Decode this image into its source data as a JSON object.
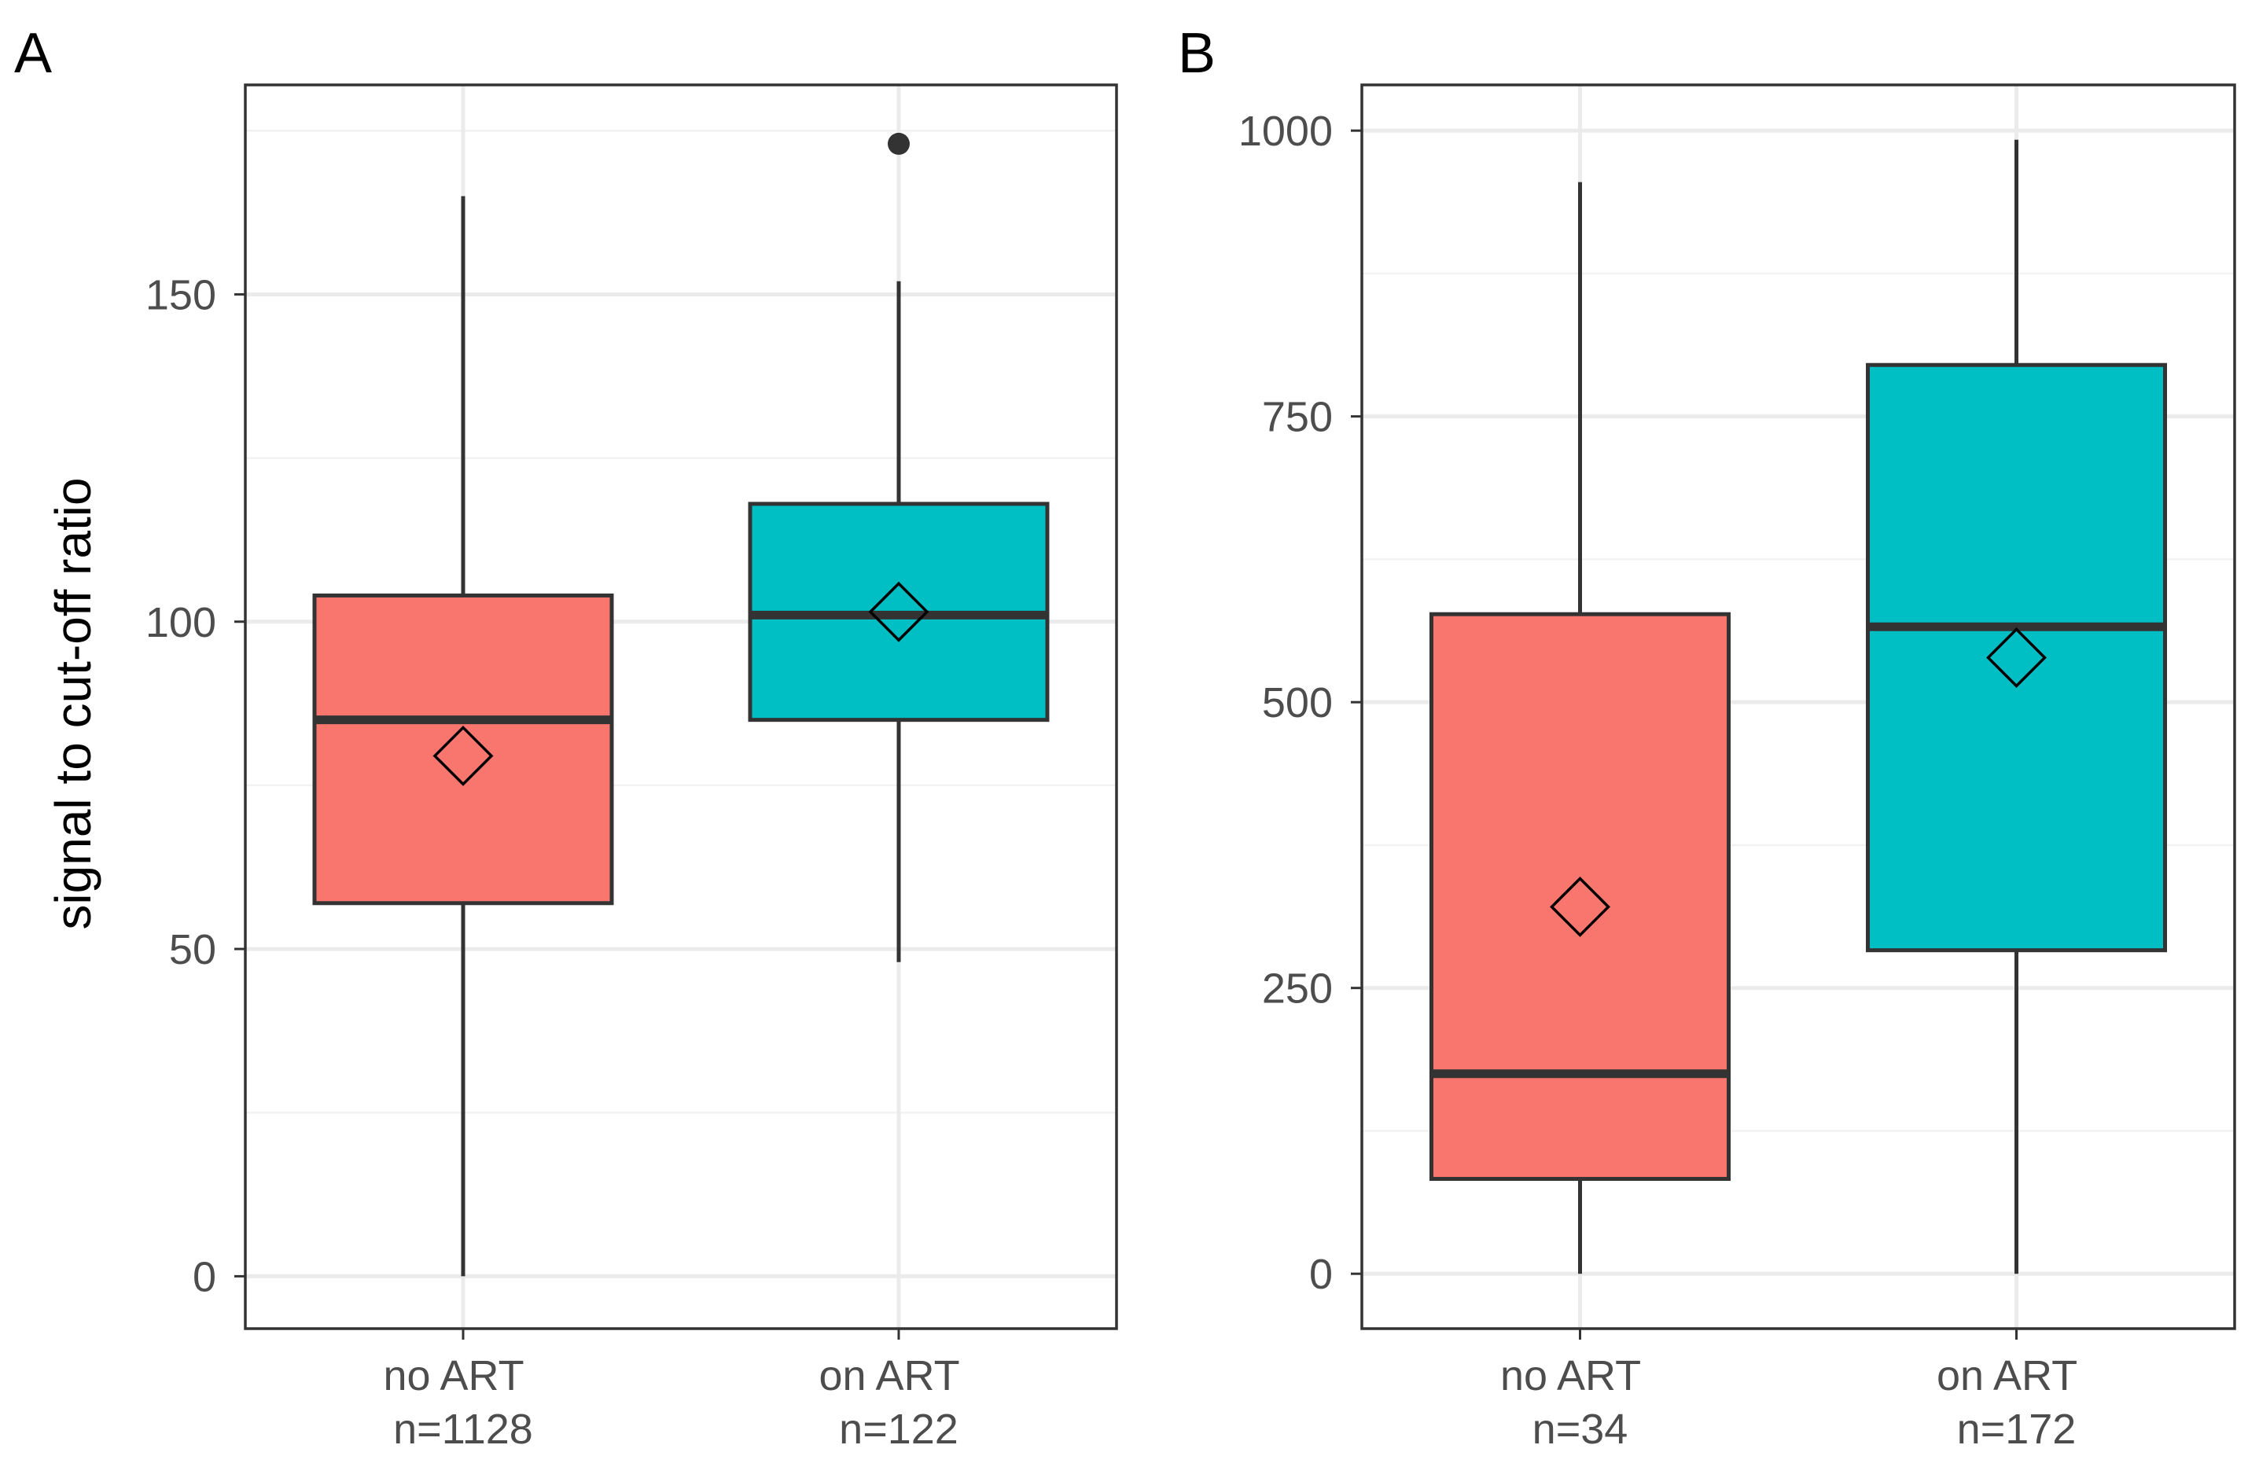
{
  "figure": {
    "ylabel": "signal to cut-off ratio"
  },
  "chart_data": [
    {
      "type": "box",
      "panel_label": "A",
      "ylabel": "signal to cut-off ratio",
      "ylim": [
        -8,
        182
      ],
      "y_ticks": [
        0,
        50,
        100,
        150
      ],
      "y_minor": [
        25,
        75,
        125,
        175
      ],
      "grid": true,
      "categories": [
        {
          "label": "no ART",
          "n_label": "n=1128",
          "color": "#F8766D",
          "whisker_low": 0,
          "q1": 57,
          "median": 85,
          "q3": 104,
          "whisker_high": 165,
          "mean": 79.5,
          "outliers": []
        },
        {
          "label": "on ART",
          "n_label": "n=122",
          "color": "#00BFC4",
          "whisker_low": 48,
          "q1": 85,
          "median": 101,
          "q3": 118,
          "whisker_high": 152,
          "mean": 101.5,
          "outliers": [
            173
          ]
        }
      ]
    },
    {
      "type": "box",
      "panel_label": "B",
      "ylabel": "",
      "ylim": [
        -48,
        1040
      ],
      "y_ticks": [
        0,
        250,
        500,
        750,
        1000
      ],
      "y_minor": [
        125,
        375,
        625,
        875
      ],
      "grid": true,
      "categories": [
        {
          "label": "no ART",
          "n_label": "n=34",
          "color": "#F8766D",
          "whisker_low": 0,
          "q1": 83,
          "median": 175,
          "q3": 577,
          "whisker_high": 955,
          "mean": 321,
          "outliers": []
        },
        {
          "label": "on ART",
          "n_label": "n=172",
          "color": "#00BFC4",
          "whisker_low": 0,
          "q1": 283,
          "median": 566,
          "q3": 795,
          "whisker_high": 992,
          "mean": 539,
          "outliers": []
        }
      ]
    }
  ]
}
